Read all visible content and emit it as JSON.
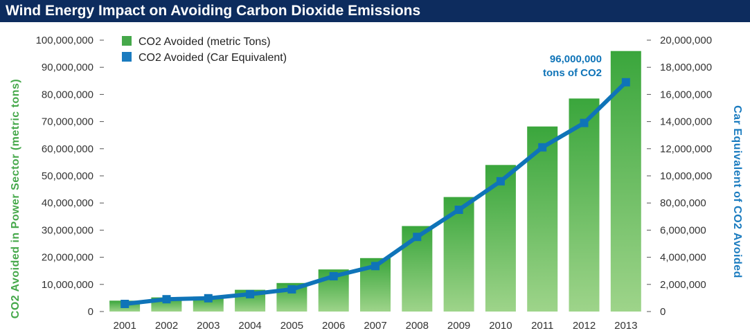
{
  "colors": {
    "title_bg": "#0d2c5e",
    "bar_top": "#3aa63c",
    "bar_bottom": "#9ed48a",
    "line": "#0f74b8",
    "left_axis": "#45a84a",
    "right_axis": "#1a7bbf"
  },
  "chart_data": {
    "type": "bar",
    "title": "Wind Energy Impact on Avoiding Carbon Dioxide Emissions",
    "categories": [
      "2001",
      "2002",
      "2003",
      "2004",
      "2005",
      "2006",
      "2007",
      "2008",
      "2009",
      "2010",
      "2011",
      "2012",
      "2013"
    ],
    "series": [
      {
        "name": "CO2 Avoided (metric Tons)",
        "type": "bar",
        "axis": "left",
        "values": [
          4000000,
          5200000,
          5500000,
          8000000,
          10500000,
          15500000,
          19700000,
          31500000,
          42200000,
          54000000,
          68200000,
          78500000,
          96000000
        ]
      },
      {
        "name": "CO2 Avoided (Car Equivalent)",
        "type": "line",
        "axis": "right",
        "values": [
          560000,
          910000,
          980000,
          1280000,
          1640000,
          2600000,
          3350000,
          5500000,
          7500000,
          9600000,
          12100000,
          13900000,
          16900000
        ]
      }
    ],
    "ylabel_left": "CO2 Avoided in Power Sector (metric tons)",
    "ylabel_right": "Car Equivalent of CO2 Avoided",
    "ylim_left": [
      0,
      100000000
    ],
    "ylim_right": [
      0,
      20000000
    ],
    "yticks_left": [
      "0",
      "10,000,000",
      "20,000,000",
      "30,000,000",
      "40,000,000",
      "50,000,000",
      "60,000,000",
      "70,000,000",
      "80,000,000",
      "90,000,000",
      "100,000,000"
    ],
    "yticks_right": [
      "0",
      "2,000,000",
      "4,000,000",
      "6,000,000",
      "80,00,000",
      "10,000,000",
      "12,000,000",
      "14,000,000",
      "16,000,000",
      "18,000,000",
      "20,000,000"
    ],
    "legend_position": "top-left",
    "annotation": {
      "line1": "96,000,000",
      "line2": "tons of CO2"
    },
    "grid": false
  }
}
